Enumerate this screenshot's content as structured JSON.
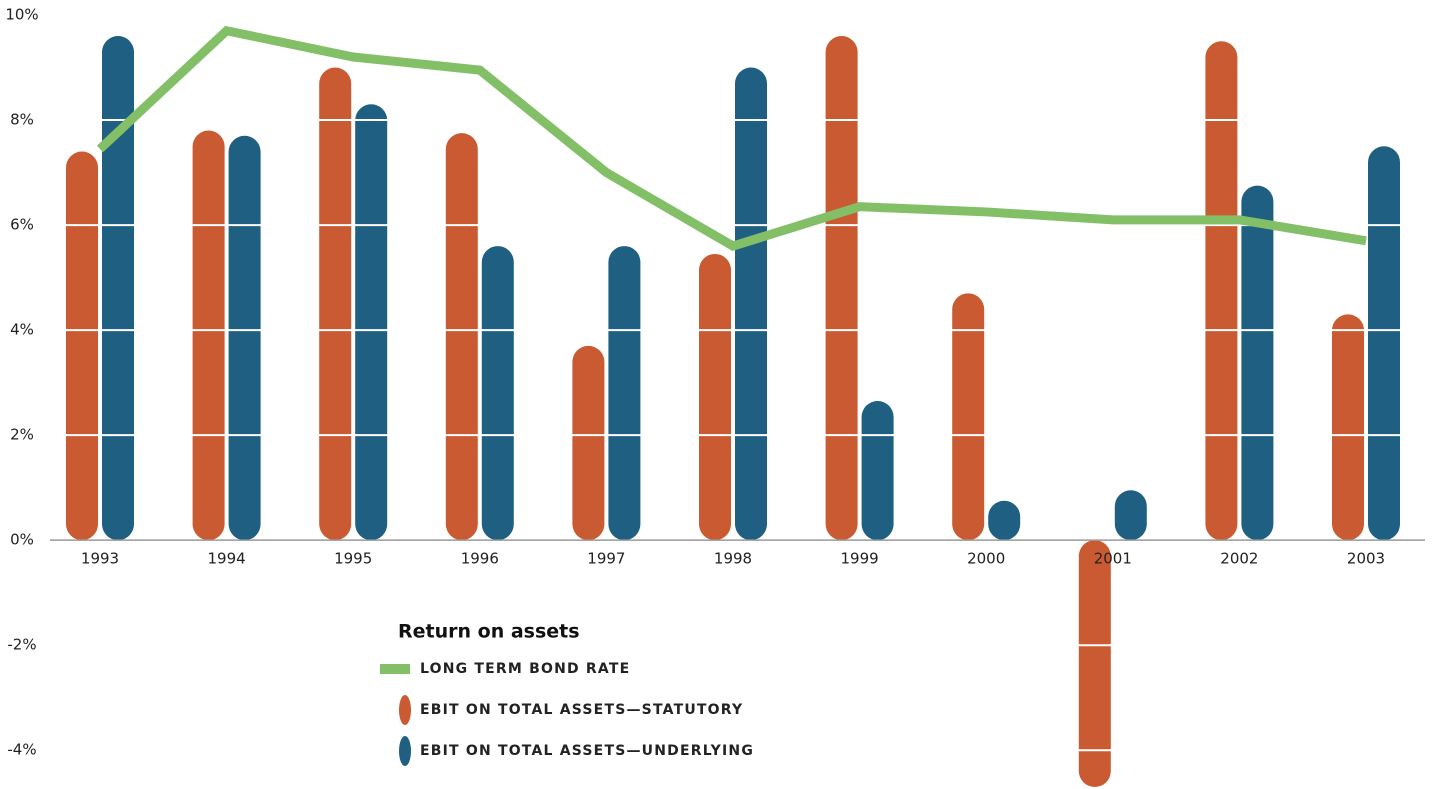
{
  "chart_data": {
    "type": "bar_line",
    "legend_title": "Return on assets",
    "categories": [
      "1993",
      "1994",
      "1995",
      "1996",
      "1997",
      "1998",
      "1999",
      "2000",
      "2001",
      "2002",
      "2003"
    ],
    "series": [
      {
        "name": "LONG TERM BOND RATE",
        "type": "line",
        "color": "#82bf67",
        "values": [
          7.45,
          9.7,
          9.2,
          8.95,
          7.0,
          5.6,
          6.35,
          6.25,
          6.1,
          6.1,
          5.7
        ]
      },
      {
        "name": "EBIT ON TOTAL ASSETS—STATUTORY",
        "type": "bar",
        "color": "#c95a31",
        "values": [
          7.4,
          7.8,
          9.0,
          7.75,
          3.7,
          5.45,
          9.6,
          4.7,
          -4.7,
          9.5,
          4.3
        ]
      },
      {
        "name": "EBIT ON TOTAL ASSETS—UNDERLYING",
        "type": "bar",
        "color": "#1f5f82",
        "values": [
          9.6,
          7.7,
          8.3,
          5.6,
          5.6,
          9.0,
          2.65,
          0.75,
          0.95,
          6.75,
          7.5
        ]
      }
    ],
    "ylim": [
      -4.7,
      10
    ],
    "yticks": [
      {
        "value": 10,
        "label": "10%"
      },
      {
        "value": 8,
        "label": "8%"
      },
      {
        "value": 6,
        "label": "6%"
      },
      {
        "value": 4,
        "label": "4%"
      },
      {
        "value": 2,
        "label": "2%"
      },
      {
        "value": 0,
        "label": "0%"
      },
      {
        "value": -2,
        "label": "-2%"
      },
      {
        "value": -4,
        "label": "-4%"
      }
    ],
    "grid": true
  }
}
